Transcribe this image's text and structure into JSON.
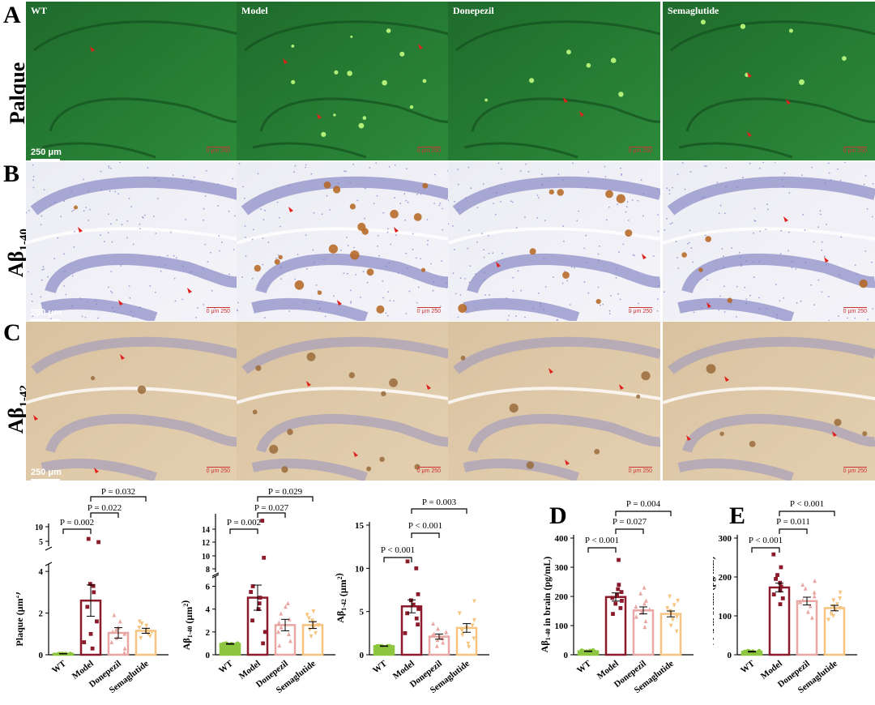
{
  "panels": {
    "A": {
      "letter": "A",
      "row_label": "Palque",
      "theme": "green"
    },
    "B": {
      "letter": "B",
      "row_label": "Aβ",
      "row_sub": "1-40",
      "theme": "blue"
    },
    "C": {
      "letter": "C",
      "row_label": "Aβ",
      "row_sub": "1-42",
      "theme": "brown"
    }
  },
  "image_labels": [
    "WT",
    "Model",
    "Donepezil",
    "Semaglutide"
  ],
  "scale_label": "250 μm",
  "micro_scale": "0   μm   250",
  "colors": {
    "WT": "#8dc63f",
    "Model": "#8b1a2b",
    "Donepezil": "#e8a7a3",
    "Semaglutide": "#f7c47f",
    "arrow": "#e0201b"
  },
  "chart_data": [
    {
      "type": "bar",
      "id": "plaque",
      "categories": [
        "WT",
        "Model",
        "Donepezil",
        "Semaglutide"
      ],
      "values": [
        0.05,
        2.6,
        1.05,
        1.15
      ],
      "errors": [
        0.01,
        0.75,
        0.25,
        0.12
      ],
      "points": [
        [
          0.05,
          0.05,
          0.05,
          0.05,
          0.05,
          0.05,
          0.05,
          0.05,
          0.05,
          0.05
        ],
        [
          0.3,
          0.6,
          1.0,
          1.6,
          2.3,
          3.0,
          3.3,
          3.4,
          4.8,
          6.0
        ],
        [
          0.1,
          0.3,
          0.6,
          0.8,
          1.0,
          1.1,
          1.2,
          1.3,
          1.6,
          1.9
        ],
        [
          0.8,
          0.9,
          1.0,
          1.1,
          1.1,
          1.2,
          1.3,
          1.4,
          1.5,
          1.6
        ]
      ],
      "ylabel": "Plaque (μm²)",
      "ylabel_main": "Plaque (μm",
      "ylabel_sup": "2",
      "ylabel_end": ")",
      "yticks_lower": [
        "0",
        "2",
        "4"
      ],
      "yticks_upper": [
        "5",
        "10"
      ],
      "comparisons": [
        "P = 0.002",
        "P = 0.022",
        "P = 0.032"
      ]
    },
    {
      "type": "bar",
      "id": "abeta140_area",
      "categories": [
        "WT",
        "Model",
        "Donepezil",
        "Semaglutide"
      ],
      "values": [
        0.95,
        5.0,
        2.6,
        2.6
      ],
      "errors": [
        0.03,
        1.1,
        0.5,
        0.3
      ],
      "points": [
        [
          0.9,
          0.9,
          0.95,
          0.95,
          1.0,
          1.0,
          0.9,
          0.95,
          1.0,
          0.95
        ],
        [
          1.0,
          2.0,
          3.0,
          4.0,
          4.5,
          5.0,
          5.5,
          6.0,
          9.0,
          14.0
        ],
        [
          0.8,
          1.2,
          1.8,
          2.0,
          2.4,
          2.8,
          3.1,
          3.6,
          4.2,
          4.5
        ],
        [
          1.6,
          1.9,
          2.2,
          2.4,
          2.6,
          2.8,
          3.0,
          3.2,
          3.5,
          3.8
        ]
      ],
      "ylabel_main": "Aβ",
      "ylabel_sub": "1-40",
      "ylabel_rest": " (μm",
      "ylabel_sup": "2",
      "ylabel_end": ")",
      "yticks_lower": [
        "0",
        "2",
        "4",
        "6"
      ],
      "yticks_upper": [
        "8",
        "10",
        "12",
        "14"
      ],
      "comparisons": [
        "P = 0.002",
        "P = 0.027",
        "P = 0.029"
      ]
    },
    {
      "type": "bar",
      "id": "abeta142_area",
      "categories": [
        "WT",
        "Model",
        "Donepezil",
        "Semaglutide"
      ],
      "values": [
        1.0,
        5.6,
        2.1,
        3.1
      ],
      "errors": [
        0.03,
        0.75,
        0.3,
        0.5
      ],
      "points": [
        [
          1.0,
          1.0,
          1.0,
          1.0,
          1.0,
          1.0,
          1.0,
          1.0,
          1.0,
          1.0
        ],
        [
          2.5,
          3.5,
          4.2,
          4.8,
          5.3,
          5.8,
          6.3,
          7.0,
          10.0,
          10.8
        ],
        [
          1.0,
          1.4,
          1.7,
          1.9,
          2.0,
          2.2,
          2.4,
          2.6,
          3.0,
          3.6
        ],
        [
          0.9,
          1.3,
          1.9,
          2.3,
          2.8,
          3.1,
          3.4,
          4.0,
          4.8,
          6.2
        ]
      ],
      "ylabel_main": "Aβ",
      "ylabel_sub": "1-42",
      "ylabel_rest": " (μm",
      "ylabel_sup": "2",
      "ylabel_end": ")",
      "yticks": [
        "0",
        "5",
        "10",
        "15"
      ],
      "comparisons": [
        "P < 0.001",
        "P < 0.001",
        "P = 0.003"
      ]
    },
    {
      "type": "bar",
      "id": "abeta140_brain",
      "panel": "D",
      "categories": [
        "WT",
        "Model",
        "Donepezil",
        "Semaglutide"
      ],
      "values": [
        12,
        198,
        152,
        140
      ],
      "errors": [
        1,
        14,
        12,
        10
      ],
      "points": [
        [
          8,
          10,
          11,
          12,
          12,
          13,
          13,
          14,
          15,
          16
        ],
        [
          140,
          160,
          175,
          185,
          195,
          205,
          215,
          225,
          240,
          325
        ],
        [
          95,
          115,
          130,
          145,
          155,
          165,
          175,
          185,
          210,
          230
        ],
        [
          80,
          100,
          120,
          130,
          140,
          150,
          160,
          170,
          185,
          200
        ]
      ],
      "ylabel_main": "Aβ",
      "ylabel_sub": "1-40",
      "ylabel_rest": " in brain (pg/mL)",
      "yticks": [
        "0",
        "100",
        "200",
        "300",
        "400"
      ],
      "comparisons": [
        "P < 0.001",
        "P = 0.027",
        "P = 0.004"
      ]
    },
    {
      "type": "bar",
      "id": "abeta142_brain",
      "panel": "E",
      "categories": [
        "WT",
        "Model",
        "Donepezil",
        "Semaglutide"
      ],
      "values": [
        8,
        173,
        138,
        120
      ],
      "errors": [
        1,
        11,
        10,
        7
      ],
      "points": [
        [
          6,
          7,
          7,
          8,
          8,
          8,
          9,
          9,
          10,
          10
        ],
        [
          130,
          145,
          155,
          165,
          175,
          185,
          195,
          205,
          225,
          258
        ],
        [
          95,
          110,
          125,
          135,
          140,
          150,
          160,
          170,
          180,
          190
        ],
        [
          90,
          100,
          105,
          115,
          120,
          125,
          130,
          140,
          145,
          160
        ]
      ],
      "ylabel_main": "Aβ",
      "ylabel_sub": "1-42",
      "ylabel_rest": " in brain (pg/mL)",
      "yticks": [
        "0",
        "100",
        "200",
        "300"
      ],
      "comparisons": [
        "P < 0.001",
        "P = 0.011",
        "P < 0.001"
      ]
    }
  ]
}
